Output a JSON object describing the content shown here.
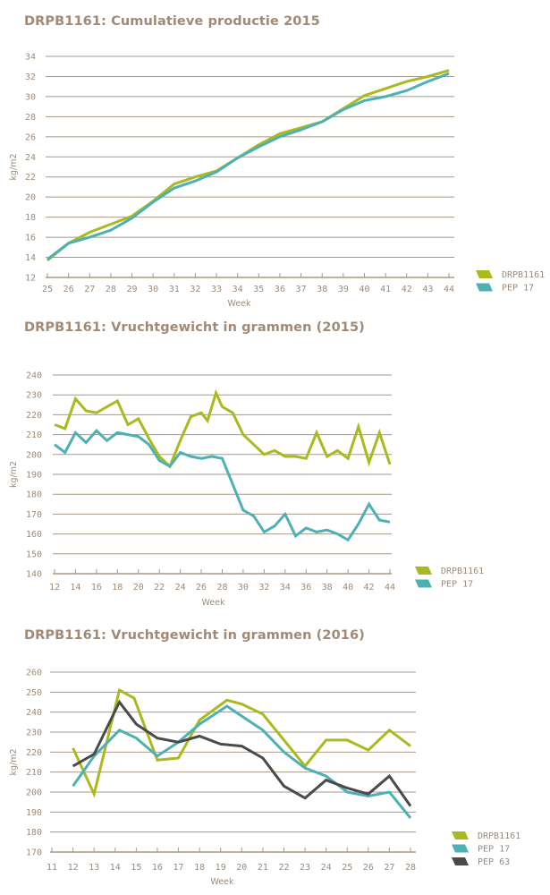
{
  "colors": {
    "drpb1161": "#aab91e",
    "pep17": "#4db1b4",
    "pep63": "#4a4a4a",
    "grid": "#a89888",
    "text": "#a08a76"
  },
  "chart_data": [
    {
      "type": "line",
      "title": "DRPB1161: Cumulatieve productie 2015",
      "xlabel": "Week",
      "ylabel": "kg/m2",
      "xlim": [
        25,
        44
      ],
      "ylim": [
        12,
        34
      ],
      "x_ticks": [
        25,
        26,
        27,
        28,
        29,
        30,
        31,
        32,
        33,
        34,
        35,
        36,
        37,
        38,
        39,
        40,
        41,
        42,
        43,
        44
      ],
      "y_ticks": [
        12,
        14,
        16,
        18,
        20,
        22,
        24,
        26,
        28,
        30,
        32,
        34
      ],
      "grid": true,
      "legend_position": "bottom-right",
      "series": [
        {
          "name": "DRPB1161",
          "color_key": "drpb1161",
          "x": [
            25,
            26,
            27,
            28,
            29,
            30,
            31,
            32,
            33,
            34,
            35,
            36,
            37,
            38,
            39,
            40,
            41,
            42,
            43,
            44
          ],
          "values": [
            13.7,
            15.4,
            16.5,
            17.3,
            18.1,
            19.6,
            21.3,
            22.0,
            22.6,
            23.9,
            25.2,
            26.3,
            26.9,
            27.5,
            28.8,
            30.1,
            30.8,
            31.5,
            32.0,
            32.6
          ]
        },
        {
          "name": "PEP 17",
          "color_key": "pep17",
          "x": [
            25,
            26,
            27,
            28,
            29,
            30,
            31,
            32,
            33,
            34,
            35,
            36,
            37,
            38,
            39,
            40,
            41,
            42,
            43,
            44
          ],
          "values": [
            13.8,
            15.4,
            16.0,
            16.7,
            17.9,
            19.5,
            20.9,
            21.6,
            22.5,
            23.9,
            25.0,
            26.0,
            26.7,
            27.5,
            28.7,
            29.6,
            30.0,
            30.6,
            31.5,
            32.3
          ]
        }
      ]
    },
    {
      "type": "line",
      "title": "DRPB1161: Vruchtgewicht in grammen (2015)",
      "xlabel": "Week",
      "ylabel": "kg/m2",
      "xlim": [
        12,
        44
      ],
      "ylim": [
        140,
        240
      ],
      "x_ticks": [
        12,
        14,
        16,
        18,
        20,
        22,
        24,
        26,
        28,
        30,
        32,
        34,
        36,
        38,
        40,
        42,
        44
      ],
      "y_ticks": [
        140,
        150,
        160,
        170,
        180,
        190,
        200,
        210,
        220,
        230,
        240
      ],
      "grid": true,
      "legend_position": "bottom-right",
      "series": [
        {
          "name": "DRPB1161",
          "color_key": "drpb1161",
          "x": [
            12,
            13,
            14,
            15,
            16,
            17,
            18,
            19,
            20,
            21,
            22,
            23,
            24,
            25,
            26,
            26.6,
            27.4,
            28,
            29,
            30,
            31,
            32,
            33,
            34,
            35,
            36,
            37,
            38,
            39,
            40,
            41,
            42,
            43,
            44
          ],
          "values": [
            215,
            213,
            228,
            222,
            221,
            224,
            227,
            215,
            218,
            208,
            199,
            194,
            207,
            219,
            221,
            217,
            231,
            224,
            221,
            210,
            205,
            200,
            202,
            199,
            199,
            198,
            211,
            199,
            202,
            198,
            214,
            196,
            211,
            195
          ]
        },
        {
          "name": "PEP 17",
          "color_key": "pep17",
          "x": [
            12,
            13,
            14,
            15,
            16,
            17,
            18,
            19,
            20,
            21,
            22,
            23,
            24,
            25,
            26,
            27,
            28,
            29,
            30,
            31,
            32,
            33,
            34,
            35,
            36,
            37,
            38,
            39,
            40,
            41,
            42,
            43,
            44
          ],
          "values": [
            205,
            201,
            211,
            206,
            212,
            207,
            211,
            210,
            209,
            205,
            197,
            194,
            201,
            199,
            198,
            199,
            198,
            185,
            172,
            169,
            161,
            164,
            170,
            159,
            163,
            161,
            162,
            160,
            157,
            165,
            175,
            167,
            166
          ]
        }
      ]
    },
    {
      "type": "line",
      "title": "DRPB1161: Vruchtgewicht in grammen (2016)",
      "xlabel": "Week",
      "ylabel": "kg/m2",
      "xlim": [
        11,
        28
      ],
      "ylim": [
        170,
        260
      ],
      "x_ticks": [
        11,
        12,
        13,
        14,
        15,
        16,
        17,
        18,
        19,
        20,
        21,
        22,
        23,
        24,
        25,
        26,
        27,
        28
      ],
      "y_ticks": [
        170,
        180,
        190,
        200,
        210,
        220,
        230,
        240,
        250,
        260
      ],
      "grid": true,
      "legend_position": "bottom-right",
      "series": [
        {
          "name": "DRPB1161",
          "color_key": "drpb1161",
          "x": [
            12,
            13,
            14.2,
            14.9,
            16,
            17,
            18,
            19.3,
            20,
            21,
            22,
            23,
            24,
            25,
            26,
            27,
            28
          ],
          "values": [
            222,
            199,
            251,
            247,
            216,
            217,
            236,
            246,
            244,
            239,
            226,
            213,
            226,
            226,
            221,
            231,
            223
          ]
        },
        {
          "name": "PEP 17",
          "color_key": "pep17",
          "x": [
            12,
            13,
            14.2,
            15,
            16,
            17,
            18,
            19.3,
            20,
            21,
            22,
            23,
            24,
            25,
            26,
            27,
            28
          ],
          "values": [
            203,
            218,
            231,
            227,
            218,
            225,
            234,
            243,
            238,
            231,
            220,
            212,
            208,
            200,
            198,
            200,
            187
          ]
        },
        {
          "name": "PEP 63",
          "color_key": "pep63",
          "x": [
            12,
            13,
            14.2,
            15,
            16,
            17,
            18,
            19,
            20,
            21,
            22,
            23,
            24,
            25,
            26,
            27,
            28
          ],
          "values": [
            213,
            219,
            245,
            234,
            227,
            225,
            228,
            224,
            223,
            217,
            203,
            197,
            206,
            202,
            199,
            208,
            193
          ]
        }
      ]
    }
  ]
}
